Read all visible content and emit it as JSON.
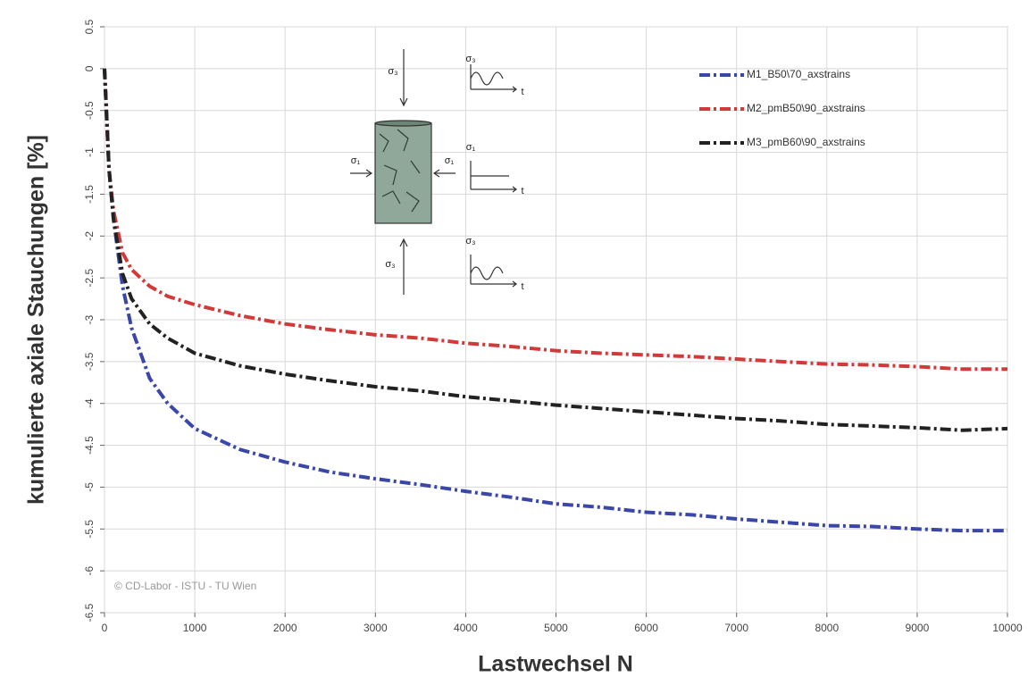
{
  "chart_data": {
    "type": "line",
    "x_label": "Lastwechsel N",
    "y_label": "kumulierte axiale Stauchungen [%]",
    "annotation": "© CD-Labor -  ISTU - TU Wien",
    "inset_labels": [
      "σ₃",
      "σ₃",
      "t",
      "σ₁",
      "σ₁",
      "σ₁",
      "t",
      "σ₃",
      "σ₃",
      "t"
    ],
    "xlim": [
      0,
      10000
    ],
    "ylim": [
      -6.5,
      0.5
    ],
    "xticks": [
      0,
      1000,
      2000,
      3000,
      4000,
      5000,
      6000,
      7000,
      8000,
      9000,
      10000
    ],
    "yticks": [
      0.5,
      0,
      -0.5,
      -1,
      -1.5,
      -2,
      -2.5,
      -3,
      -3.5,
      -4,
      -4.5,
      -5,
      -5.5,
      -6,
      -6.5
    ],
    "grid": true,
    "legend": "upper right",
    "x": [
      0,
      50,
      100,
      200,
      300,
      500,
      700,
      1000,
      1500,
      2000,
      2500,
      3000,
      3500,
      4000,
      4500,
      5000,
      5500,
      6000,
      6500,
      7000,
      7500,
      8000,
      8500,
      9000,
      9500,
      10000
    ],
    "series": [
      {
        "name": "M1_B50\\70_axstrains",
        "color": "#3a47a8",
        "values": [
          0,
          -1.2,
          -1.8,
          -2.6,
          -3.1,
          -3.7,
          -4.0,
          -4.3,
          -4.55,
          -4.7,
          -4.82,
          -4.9,
          -4.97,
          -5.05,
          -5.12,
          -5.2,
          -5.24,
          -5.3,
          -5.33,
          -5.38,
          -5.42,
          -5.46,
          -5.47,
          -5.5,
          -5.52,
          -5.52
        ]
      },
      {
        "name": "M2_pmB50\\90_axstrains",
        "color": "#d23a3a",
        "values": [
          0,
          -1.2,
          -1.7,
          -2.2,
          -2.4,
          -2.6,
          -2.72,
          -2.82,
          -2.95,
          -3.05,
          -3.12,
          -3.18,
          -3.22,
          -3.28,
          -3.32,
          -3.37,
          -3.4,
          -3.42,
          -3.44,
          -3.47,
          -3.5,
          -3.53,
          -3.54,
          -3.56,
          -3.59,
          -3.59
        ]
      },
      {
        "name": "M3_pmB60\\90_axstrains",
        "color": "#222222",
        "values": [
          0,
          -1.2,
          -1.8,
          -2.45,
          -2.75,
          -3.05,
          -3.22,
          -3.4,
          -3.55,
          -3.65,
          -3.73,
          -3.8,
          -3.85,
          -3.92,
          -3.97,
          -4.02,
          -4.06,
          -4.1,
          -4.14,
          -4.18,
          -4.21,
          -4.25,
          -4.27,
          -4.29,
          -4.32,
          -4.3
        ]
      }
    ]
  }
}
